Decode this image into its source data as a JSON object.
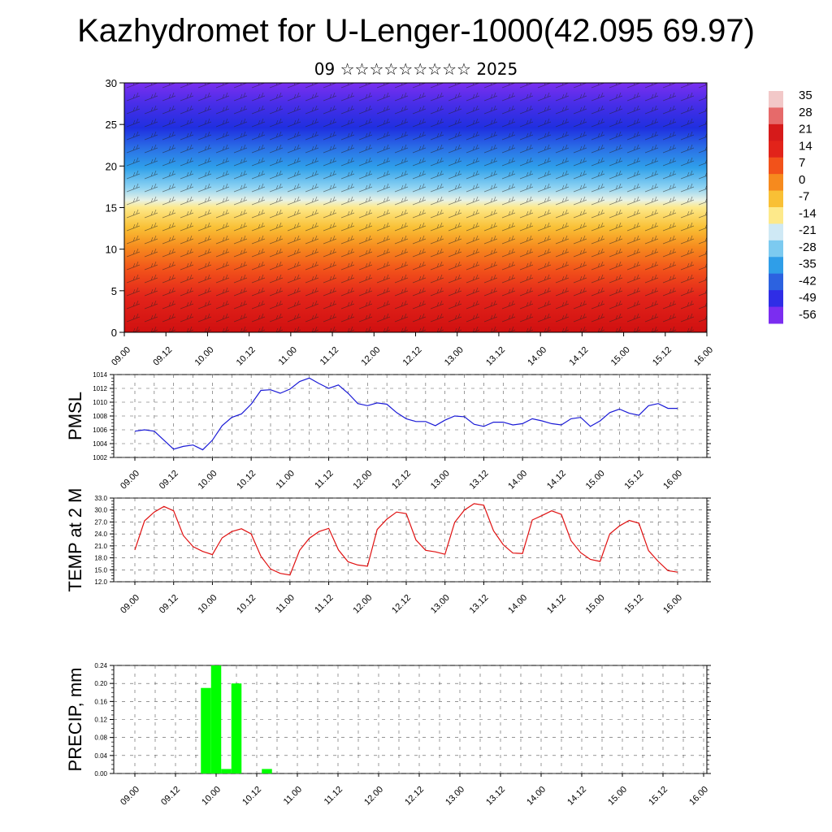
{
  "title": "Kazhydromet for U-Lenger-1000(42.095 69.97)",
  "subtitle": "09 ☆☆☆☆☆☆☆☆☆ 2025",
  "time_labels": [
    "09.00",
    "09.12",
    "10.00",
    "10.12",
    "11.00",
    "11.12",
    "12.00",
    "12.12",
    "13.00",
    "13.12",
    "14.00",
    "14.12",
    "15.00",
    "15.12",
    "16.00"
  ],
  "colorbar": {
    "labels": [
      "35",
      "28",
      "21",
      "14",
      "7",
      "0",
      "-7",
      "-14",
      "-21",
      "-28",
      "-35",
      "-42",
      "-49",
      "-56"
    ],
    "colors": [
      "#f2c8c8",
      "#e66a6a",
      "#d61a1a",
      "#e2231a",
      "#f2521a",
      "#f68a1e",
      "#f9c035",
      "#fde98a",
      "#cfe9f5",
      "#7ccaf0",
      "#2f9ee8",
      "#2c62e0",
      "#2f2de6",
      "#7b2df0"
    ]
  },
  "chart_data": [
    {
      "type": "heatmap",
      "ylim": [
        0,
        30
      ],
      "y_ticks": [
        "0",
        "5",
        "10",
        "15",
        "20",
        "25",
        "30"
      ],
      "x_labels_ref": "time_labels"
    },
    {
      "type": "line",
      "ylabel": "PMSL",
      "ylim": [
        1002,
        1014
      ],
      "y_ticks": [
        "1002",
        "1004",
        "1006",
        "1008",
        "1010",
        "1012",
        "1014"
      ],
      "color": "#1a1ad6",
      "values": [
        1005.8,
        1006.0,
        1005.8,
        1004.5,
        1003.2,
        1003.6,
        1003.8,
        1003.1,
        1004.5,
        1006.6,
        1007.8,
        1008.3,
        1009.7,
        1011.7,
        1011.8,
        1011.3,
        1011.9,
        1013.0,
        1013.5,
        1012.7,
        1012.0,
        1012.5,
        1011.3,
        1009.8,
        1009.5,
        1009.9,
        1009.7,
        1008.5,
        1007.6,
        1007.2,
        1007.2,
        1006.6,
        1007.4,
        1008.0,
        1007.9,
        1006.8,
        1006.5,
        1007.1,
        1007.1,
        1006.7,
        1006.9,
        1007.6,
        1007.3,
        1006.9,
        1006.7,
        1007.6,
        1007.8,
        1006.5,
        1007.3,
        1008.5,
        1009.0,
        1008.4,
        1008.1,
        1009.5,
        1009.8,
        1009.1,
        1009.1
      ]
    },
    {
      "type": "line",
      "ylabel": "TEMP at 2 M",
      "ylim": [
        12,
        33
      ],
      "y_ticks": [
        "12.0",
        "15.0",
        "18.0",
        "21.0",
        "24.0",
        "27.0",
        "30.0",
        "33.0"
      ],
      "color": "#e01010",
      "values": [
        20.0,
        27.3,
        29.5,
        30.9,
        29.8,
        23.6,
        20.8,
        19.6,
        18.8,
        23.0,
        24.6,
        25.3,
        24.0,
        18.4,
        15.2,
        14.1,
        13.7,
        19.9,
        22.9,
        24.6,
        25.4,
        20.0,
        17.0,
        16.2,
        15.9,
        25.1,
        27.7,
        29.5,
        29.1,
        22.5,
        19.9,
        19.5,
        18.9,
        26.9,
        30.0,
        31.6,
        31.2,
        24.8,
        21.3,
        19.2,
        19.1,
        27.5,
        28.6,
        29.8,
        28.9,
        22.3,
        19.3,
        17.6,
        17.1,
        24.0,
        26.0,
        27.4,
        26.7,
        19.8,
        17.1,
        14.8,
        14.4
      ]
    },
    {
      "type": "bar",
      "ylabel": "PRECIP, mm",
      "ylim": [
        0,
        0.24
      ],
      "y_ticks": [
        "0.00",
        "0.04",
        "0.08",
        "0.12",
        "0.16",
        "0.20",
        "0.24"
      ],
      "color": "#00ff00",
      "values": [
        0,
        0,
        0,
        0,
        0,
        0,
        0,
        0.19,
        0.24,
        0.01,
        0.2,
        0,
        0,
        0.01,
        0,
        0,
        0,
        0,
        0,
        0,
        0,
        0,
        0,
        0,
        0,
        0,
        0,
        0,
        0,
        0,
        0,
        0,
        0,
        0,
        0,
        0,
        0,
        0,
        0,
        0,
        0,
        0,
        0,
        0,
        0,
        0,
        0,
        0,
        0,
        0,
        0,
        0,
        0,
        0,
        0,
        0,
        0
      ]
    }
  ]
}
